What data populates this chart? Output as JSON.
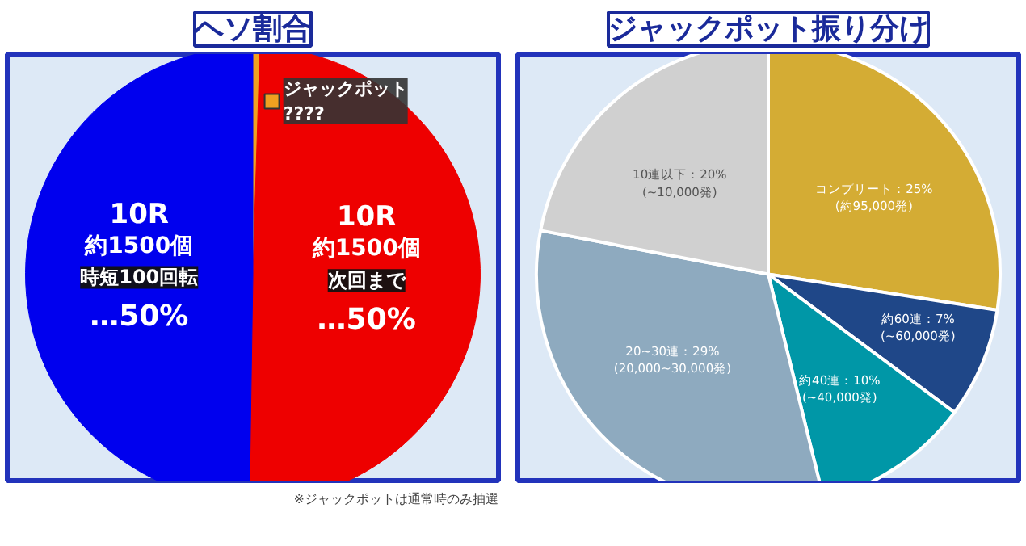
{
  "chart_data": [
    {
      "type": "pie",
      "title": "ヘソ割合",
      "categories": [
        "ジャックポット\n????",
        "10R\n約1500個",
        "10R\n約1500個"
      ],
      "values": [
        0.5,
        50,
        50
      ],
      "colors": [
        "#f0a020",
        "#ee0000",
        "#0000ee"
      ],
      "value_labels": [
        null,
        "次回まで\n…50%",
        "時短100回転\n…50%"
      ],
      "annotations": [
        "※ジャックポットは通常時のみ抽選"
      ]
    },
    {
      "type": "pie",
      "title": "ジャックポット振り分け",
      "categories": [
        "コンプリート：25%\n(約95,000発)",
        "約60連：7%\n(~60,000発)",
        "約40連：10%\n(~40,000発)",
        "20~30連：29%\n(20,000~30,000発)",
        "10連以下：20%\n(~10,000発)"
      ],
      "values": [
        25,
        7,
        10,
        29,
        20
      ],
      "colors": [
        "#d4ac34",
        "#1f4788",
        "#0097a7",
        "#8eaabf",
        "#d0d0d0"
      ]
    }
  ]
}
